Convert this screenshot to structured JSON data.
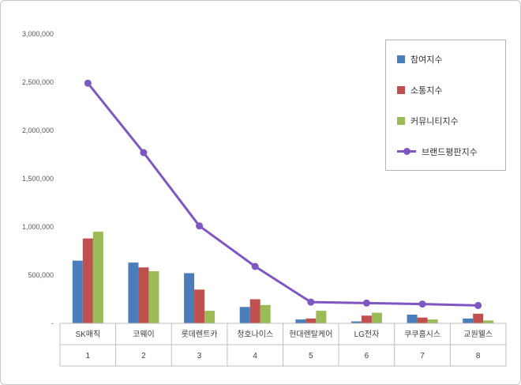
{
  "chart_data": {
    "type": "bar",
    "title": "",
    "xlabel": "",
    "ylabel": "",
    "grid": false,
    "legend_position": "upper-right",
    "categories": [
      "SK매직",
      "코웨이",
      "롯데렌트카",
      "청호나이스",
      "현대렌탈케어",
      "LG전자",
      "쿠쿠홈시스",
      "교원웰스"
    ],
    "rank_labels": [
      "1",
      "2",
      "3",
      "4",
      "5",
      "6",
      "7",
      "8"
    ],
    "series": [
      {
        "key": "participation",
        "name": "참여지수",
        "color": "#4a7ebb",
        "values": [
          650000,
          630000,
          520000,
          170000,
          40000,
          20000,
          90000,
          50000
        ]
      },
      {
        "key": "communication",
        "name": "소통지수",
        "color": "#c0504d",
        "values": [
          880000,
          580000,
          350000,
          250000,
          50000,
          80000,
          60000,
          100000
        ]
      },
      {
        "key": "community",
        "name": "커뮤니티지수",
        "color": "#9bbb59",
        "values": [
          950000,
          540000,
          130000,
          190000,
          130000,
          110000,
          40000,
          30000
        ]
      }
    ],
    "line_series": {
      "key": "brand-reputation",
      "name": "브랜드평판지수",
      "color": "#7e57c2",
      "values": [
        2490000,
        1770000,
        1010000,
        590000,
        220000,
        210000,
        200000,
        185000
      ]
    },
    "ylim": [
      0,
      3000000
    ],
    "y_tick_step": 500000,
    "y_ticks": [
      "-",
      "500,000",
      "1,000,000",
      "1,500,000",
      "2,000,000",
      "2,500,000",
      "3,000,000"
    ]
  }
}
